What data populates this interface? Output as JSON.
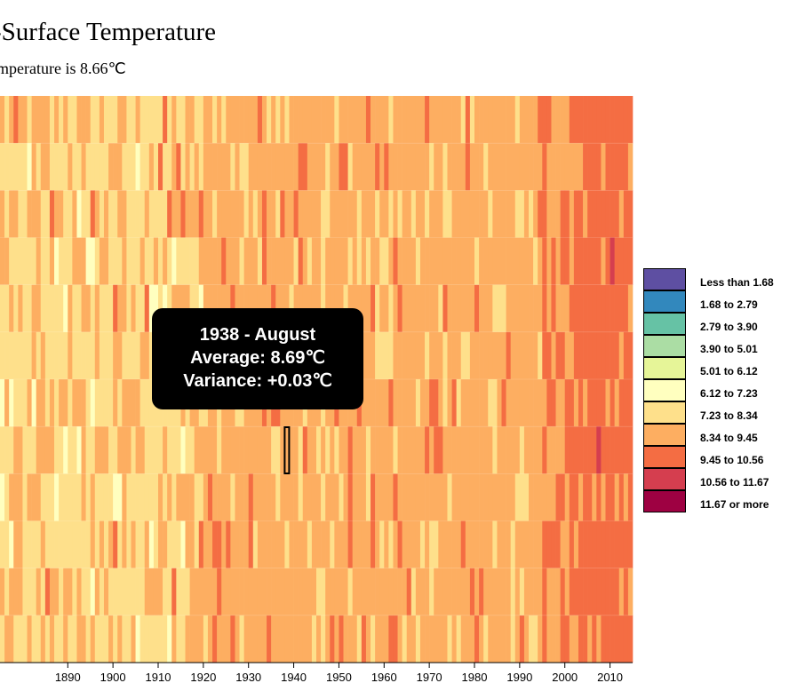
{
  "title": "-Surface Temperature",
  "subtitle": "mperature is 8.66℃",
  "tooltip": {
    "line1": "1938 - August",
    "avg_label": "Average: 8.69",
    "var_label": "Variance: +0.03",
    "unit": "℃"
  },
  "legend": {
    "items": [
      {
        "label": "Less than 1.68",
        "color": "#5e4fa2"
      },
      {
        "label": "1.68 to 2.79",
        "color": "#3288bd"
      },
      {
        "label": "2.79 to 3.90",
        "color": "#66c2a5"
      },
      {
        "label": "3.90 to 5.01",
        "color": "#abdda4"
      },
      {
        "label": "5.01 to 6.12",
        "color": "#e6f598"
      },
      {
        "label": "6.12 to 7.23",
        "color": "#ffffbf"
      },
      {
        "label": "7.23 to 8.34",
        "color": "#fee08b"
      },
      {
        "label": "8.34 to 9.45",
        "color": "#fdae61"
      },
      {
        "label": "9.45 to 10.56",
        "color": "#f46d43"
      },
      {
        "label": "10.56 to 11.67",
        "color": "#d53e4f"
      },
      {
        "label": "11.67 or more",
        "color": "#9e0142"
      }
    ]
  },
  "chart_data": {
    "type": "heatmap",
    "title": "-Surface Temperature",
    "xlabel": "",
    "ylabel": "",
    "x_tick_labels": [
      "1890",
      "1900",
      "1910",
      "1920",
      "1930",
      "1940",
      "1950",
      "1960",
      "1970",
      "1980",
      "1990",
      "2000",
      "2010"
    ],
    "xlim": [
      1875,
      2015
    ],
    "base_temperature": 8.66,
    "highlighted_cell": {
      "year": 1938,
      "month": "August",
      "value": 8.69,
      "variance": 0.03
    },
    "description_of_trend": "warmer colors (9.45 to 10.56) increase after 2000"
  }
}
